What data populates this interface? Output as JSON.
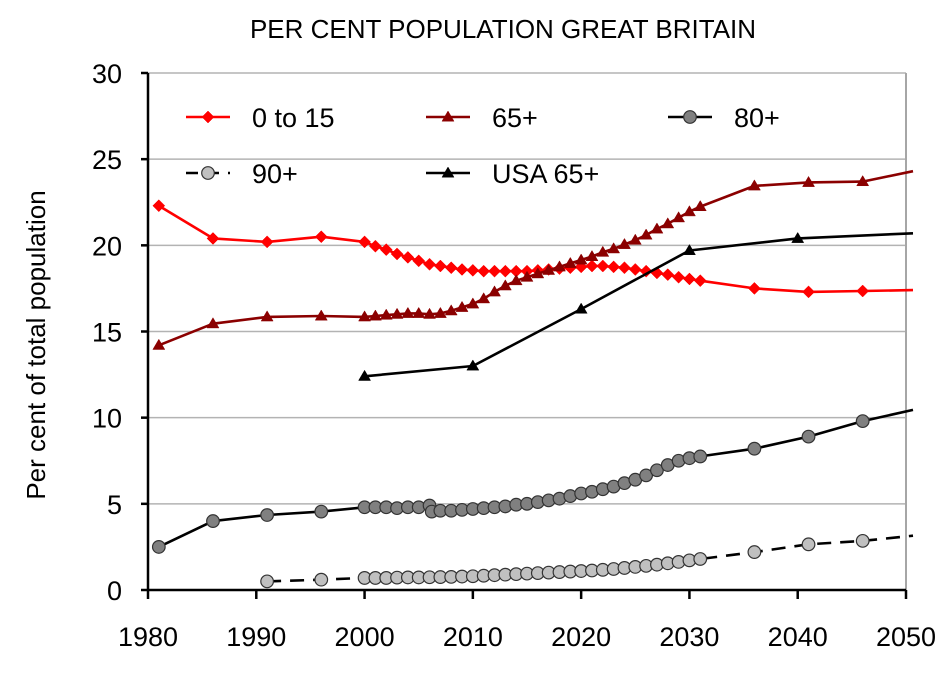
{
  "chart_data": {
    "type": "line",
    "title": "PER CENT POPULATION GREAT BRITAIN",
    "xlabel": "",
    "ylabel": "Per cent of total population",
    "xlim": [
      1980,
      2050
    ],
    "ylim": [
      0,
      30
    ],
    "xticks": [
      1980,
      1990,
      2000,
      2010,
      2020,
      2030,
      2040,
      2050
    ],
    "yticks": [
      0,
      5,
      10,
      15,
      20,
      25,
      30
    ],
    "grid": "horizontal",
    "legend_position": "top",
    "series": [
      {
        "name": "0 to 15",
        "color": "#ff0000",
        "marker": "diamond",
        "line": "solid",
        "x": [
          1981,
          1986,
          1991,
          1996,
          2000,
          2001,
          2002,
          2003,
          2004,
          2005,
          2006,
          2007,
          2008,
          2009,
          2010,
          2011,
          2012,
          2013,
          2014,
          2015,
          2016,
          2017,
          2018,
          2019,
          2020,
          2021,
          2022,
          2023,
          2024,
          2025,
          2026,
          2027,
          2028,
          2029,
          2030,
          2031,
          2036,
          2041,
          2046,
          2051
        ],
        "y": [
          22.3,
          20.4,
          20.2,
          20.5,
          20.2,
          19.95,
          19.75,
          19.5,
          19.3,
          19.1,
          18.9,
          18.8,
          18.7,
          18.6,
          18.55,
          18.5,
          18.5,
          18.5,
          18.5,
          18.5,
          18.55,
          18.6,
          18.65,
          18.7,
          18.75,
          18.8,
          18.8,
          18.75,
          18.7,
          18.6,
          18.5,
          18.4,
          18.3,
          18.15,
          18.05,
          17.95,
          17.5,
          17.3,
          17.35,
          17.4
        ]
      },
      {
        "name": "65+",
        "color": "#8b0000",
        "marker": "triangle",
        "line": "solid",
        "x": [
          1981,
          1986,
          1991,
          1996,
          2000,
          2001,
          2002,
          2003,
          2004,
          2005,
          2006,
          2007,
          2008,
          2009,
          2010,
          2011,
          2012,
          2013,
          2014,
          2015,
          2016,
          2017,
          2018,
          2019,
          2020,
          2021,
          2022,
          2023,
          2024,
          2025,
          2026,
          2027,
          2028,
          2029,
          2030,
          2031,
          2036,
          2041,
          2046,
          2051
        ],
        "y": [
          14.2,
          15.45,
          15.85,
          15.9,
          15.85,
          15.9,
          15.95,
          16.0,
          16.05,
          16.05,
          16.0,
          16.05,
          16.2,
          16.4,
          16.6,
          16.9,
          17.3,
          17.65,
          17.95,
          18.15,
          18.35,
          18.55,
          18.75,
          18.95,
          19.15,
          19.35,
          19.6,
          19.8,
          20.05,
          20.3,
          20.6,
          20.95,
          21.25,
          21.6,
          21.95,
          22.25,
          23.45,
          23.65,
          23.7,
          24.3
        ]
      },
      {
        "name": "80+",
        "color": "#808080",
        "marker": "circle",
        "line": "solid",
        "x": [
          1981,
          1986,
          1991,
          1996,
          2000,
          2001,
          2002,
          2003,
          2004,
          2005,
          2006,
          2006.2,
          2007,
          2008,
          2009,
          2010,
          2011,
          2012,
          2013,
          2014,
          2015,
          2016,
          2017,
          2018,
          2019,
          2020,
          2021,
          2022,
          2023,
          2024,
          2025,
          2026,
          2027,
          2028,
          2029,
          2030,
          2031,
          2036,
          2041,
          2046,
          2051
        ],
        "y": [
          2.5,
          4.0,
          4.35,
          4.55,
          4.8,
          4.8,
          4.8,
          4.75,
          4.8,
          4.8,
          4.9,
          4.55,
          4.6,
          4.6,
          4.65,
          4.7,
          4.75,
          4.8,
          4.85,
          4.95,
          5.0,
          5.1,
          5.2,
          5.3,
          5.45,
          5.6,
          5.7,
          5.85,
          6.0,
          6.2,
          6.4,
          6.65,
          6.95,
          7.25,
          7.5,
          7.65,
          7.75,
          8.2,
          8.9,
          9.8,
          10.45
        ]
      },
      {
        "name": "90+",
        "color": "#c0c0c0",
        "marker": "circle",
        "line": "dashed",
        "x": [
          1991,
          1996,
          2000,
          2001,
          2002,
          2003,
          2004,
          2005,
          2006,
          2007,
          2008,
          2009,
          2010,
          2011,
          2012,
          2013,
          2014,
          2015,
          2016,
          2017,
          2018,
          2019,
          2020,
          2021,
          2022,
          2023,
          2024,
          2025,
          2026,
          2027,
          2028,
          2029,
          2030,
          2031,
          2036,
          2041,
          2046,
          2051
        ],
        "y": [
          0.5,
          0.6,
          0.7,
          0.7,
          0.7,
          0.72,
          0.73,
          0.73,
          0.74,
          0.75,
          0.76,
          0.78,
          0.8,
          0.83,
          0.86,
          0.89,
          0.92,
          0.95,
          0.98,
          1.01,
          1.04,
          1.07,
          1.1,
          1.13,
          1.17,
          1.22,
          1.28,
          1.34,
          1.4,
          1.47,
          1.55,
          1.63,
          1.72,
          1.8,
          2.2,
          2.65,
          2.85,
          3.15
        ]
      },
      {
        "name": "USA 65+",
        "color": "#000000",
        "marker": "triangle",
        "line": "solid",
        "x": [
          2000,
          2010,
          2020,
          2030,
          2040,
          2051
        ],
        "y": [
          12.4,
          13.0,
          16.3,
          19.7,
          20.4,
          20.7
        ]
      }
    ]
  },
  "legend": {
    "items": [
      {
        "label": "0 to 15",
        "series_index": 0
      },
      {
        "label": "65+",
        "series_index": 1
      },
      {
        "label": "80+",
        "series_index": 2
      },
      {
        "label": "90+",
        "series_index": 3
      },
      {
        "label": "USA 65+",
        "series_index": 4
      }
    ]
  }
}
